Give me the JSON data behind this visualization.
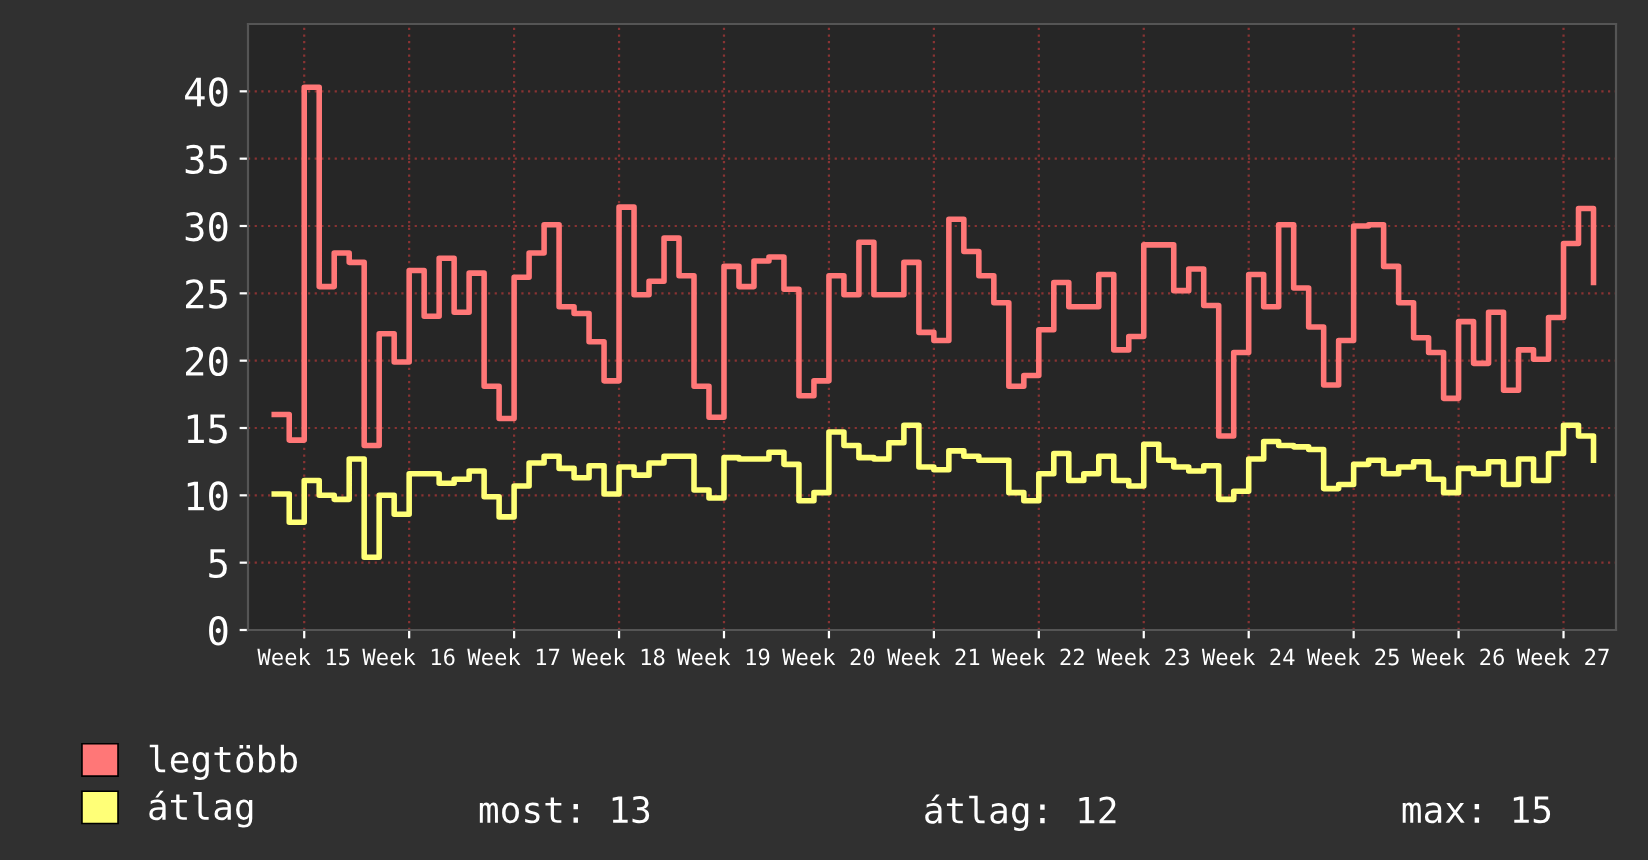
{
  "chart_data": {
    "type": "step",
    "categories": [
      null,
      null,
      "Week 15",
      null,
      null,
      null,
      null,
      null,
      null,
      "Week 16",
      null,
      null,
      null,
      null,
      null,
      null,
      "Week 17",
      null,
      null,
      null,
      null,
      null,
      null,
      "Week 18",
      null,
      null,
      null,
      null,
      null,
      null,
      "Week 19",
      null,
      null,
      null,
      null,
      null,
      null,
      "Week 20",
      null,
      null,
      null,
      null,
      null,
      null,
      "Week 21",
      null,
      null,
      null,
      null,
      null,
      null,
      "Week 22",
      null,
      null,
      null,
      null,
      null,
      null,
      "Week 23",
      null,
      null,
      null,
      null,
      null,
      null,
      "Week 24",
      null,
      null,
      null,
      null,
      null,
      null,
      "Week 25",
      null,
      null,
      null,
      null,
      null,
      null,
      "Week 26",
      null,
      null,
      null,
      null,
      null,
      null,
      "Week 27",
      null,
      null
    ],
    "series": [
      {
        "name": "legtöbb",
        "color": "#ff7777",
        "values": [
          16,
          14.1,
          40.3,
          25.5,
          28,
          27.3,
          13.7,
          22,
          19.9,
          26.7,
          23.3,
          27.6,
          23.6,
          26.5,
          18.1,
          15.7,
          26.2,
          28,
          30.1,
          24,
          23.5,
          21.4,
          18.5,
          31.4,
          24.9,
          25.9,
          29.1,
          26.3,
          18.1,
          15.8,
          27,
          25.5,
          27.4,
          27.7,
          25.3,
          17.4,
          18.5,
          26.3,
          24.9,
          28.8,
          24.9,
          24.9,
          27.3,
          22.1,
          21.5,
          30.5,
          28.1,
          26.3,
          24.3,
          18.1,
          18.9,
          22.3,
          25.8,
          24,
          24,
          26.4,
          20.8,
          21.8,
          28.6,
          28.6,
          25.2,
          26.8,
          24.1,
          14.4,
          20.6,
          26.4,
          24,
          30.1,
          25.4,
          22.5,
          18.2,
          21.5,
          30,
          30.1,
          27,
          24.3,
          21.7,
          20.6,
          17.2,
          22.9,
          19.8,
          23.6,
          17.8,
          20.8,
          20.1,
          23.2,
          28.7,
          31.3,
          25.8
        ]
      },
      {
        "name": "átlag",
        "color": "#ffff77",
        "values": [
          10.1,
          8,
          11.1,
          10,
          9.7,
          12.7,
          5.4,
          10,
          8.6,
          11.6,
          11.6,
          10.9,
          11.2,
          11.8,
          9.9,
          8.4,
          10.7,
          12.4,
          12.9,
          12,
          11.3,
          12.2,
          10.1,
          12.1,
          11.5,
          12.4,
          12.9,
          12.9,
          10.4,
          9.8,
          12.8,
          12.7,
          12.7,
          13.2,
          12.3,
          9.6,
          10.2,
          14.7,
          13.7,
          12.8,
          12.7,
          13.9,
          15.2,
          12.1,
          11.9,
          13.3,
          12.9,
          12.6,
          12.6,
          10.2,
          9.6,
          11.6,
          13.1,
          11.1,
          11.6,
          12.9,
          11.1,
          10.7,
          13.8,
          12.6,
          12.1,
          11.8,
          12.2,
          9.7,
          10.3,
          12.7,
          14,
          13.7,
          13.6,
          13.4,
          10.5,
          10.8,
          12.3,
          12.6,
          11.6,
          12.1,
          12.5,
          11.2,
          10.2,
          12,
          11.6,
          12.5,
          10.8,
          12.7,
          11.1,
          13.1,
          15.2,
          14.4,
          12.6
        ]
      }
    ],
    "ylim": [
      0,
      45
    ],
    "yticks": [
      0,
      5,
      10,
      15,
      20,
      25,
      30,
      35,
      40
    ],
    "grid": true,
    "legend": "bottom left",
    "annotations": [
      "most: 13",
      "átlag: 12",
      "max: 15"
    ]
  }
}
